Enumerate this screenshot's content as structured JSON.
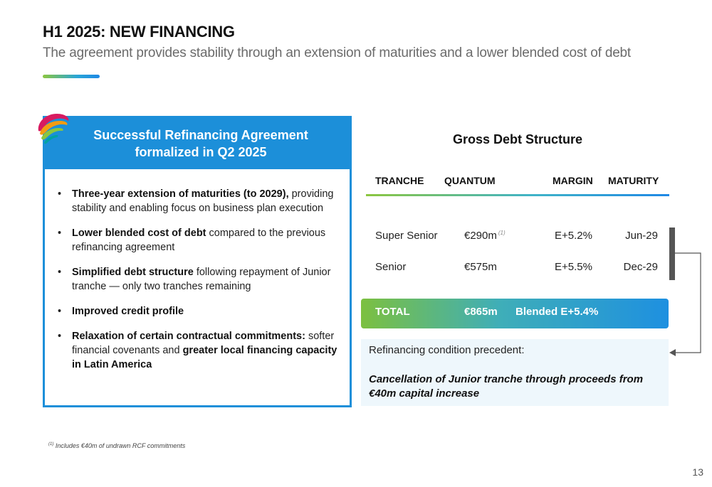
{
  "slide": {
    "title": "H1 2025: NEW FINANCING",
    "subtitle": "The agreement provides stability through an extension of maturities and a lower blended cost of debt",
    "page_number": "13"
  },
  "left_panel": {
    "header_line1": "Successful Refinancing Agreement",
    "header_line2": "formalized in Q2 2025",
    "bullets": [
      {
        "bold": "Three-year extension of maturities (to 2029),",
        "text": " providing stability and enabling focus on business plan execution"
      },
      {
        "bold": "Lower blended cost of debt",
        "text": " compared to the previous refinancing agreement"
      },
      {
        "bold": "Simplified debt structure",
        "text": " following repayment of Junior tranche — only two tranches remaining"
      },
      {
        "bold": "Improved credit profile",
        "text": ""
      },
      {
        "bold": "Relaxation of certain contractual commitments:",
        "text": " softer financial covenants and ",
        "bold2": "greater local financing capacity in Latin America"
      }
    ]
  },
  "debt_table": {
    "title": "Gross Debt Structure",
    "headers": {
      "tranche": "TRANCHE",
      "quantum": "QUANTUM",
      "margin": "MARGIN",
      "maturity": "MATURITY"
    },
    "rows": [
      {
        "tranche": "Super Senior",
        "quantum": "€290m",
        "note": "(1)",
        "margin": "E+5.2%",
        "maturity": "Jun-29"
      },
      {
        "tranche": "Senior",
        "quantum": "€575m",
        "note": "",
        "margin": "E+5.5%",
        "maturity": "Dec-29"
      }
    ],
    "total": {
      "label": "TOTAL",
      "quantum": "€865m",
      "margin": "Blended E+5.4%"
    }
  },
  "condition": {
    "label": "Refinancing condition precedent:",
    "text_line1": "Cancellation of Junior tranche through proceeds from",
    "text_line2": "€40m capital increase"
  },
  "footnote": {
    "marker": "(1)",
    "text": " Includes €40m of undrawn RCF commitments"
  },
  "colors": {
    "brand_blue": "#1c8fd9",
    "brand_green": "#8cc63f",
    "light_panel": "#eef7fc"
  }
}
